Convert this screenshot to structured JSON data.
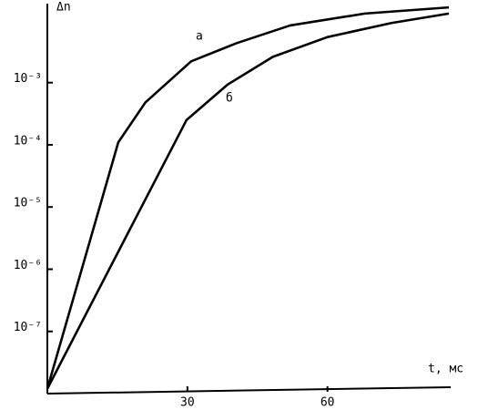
{
  "chart_data": {
    "type": "line",
    "y_label": "Δn",
    "x_label": "t, мс",
    "log_y": true,
    "xlim": [
      0,
      86
    ],
    "xticks": [
      30,
      60
    ],
    "ylim": [
      1e-08,
      0.018
    ],
    "yticks": [
      {
        "value": 1e-07,
        "label": "10⁻⁷"
      },
      {
        "value": 1e-06,
        "label": "10⁻⁶"
      },
      {
        "value": 1e-05,
        "label": "10⁻⁵"
      },
      {
        "value": 0.0001,
        "label": "10⁻⁴"
      },
      {
        "value": 0.001,
        "label": "10⁻³"
      }
    ],
    "series": [
      {
        "name": "а",
        "color": "#000000",
        "x": [
          0,
          15.2,
          21,
          30.8,
          40.5,
          52,
          68,
          86
        ],
        "values": [
          1.2e-08,
          0.00011,
          0.00048,
          0.0022,
          0.0043,
          0.0083,
          0.0129,
          0.0162
        ]
      },
      {
        "name": "б",
        "color": "#000000",
        "x": [
          0,
          29.8,
          38.6,
          48.3,
          60,
          73.7,
          86
        ],
        "values": [
          1.2e-08,
          0.00025,
          0.00093,
          0.0026,
          0.0054,
          0.0091,
          0.0129
        ]
      }
    ]
  }
}
